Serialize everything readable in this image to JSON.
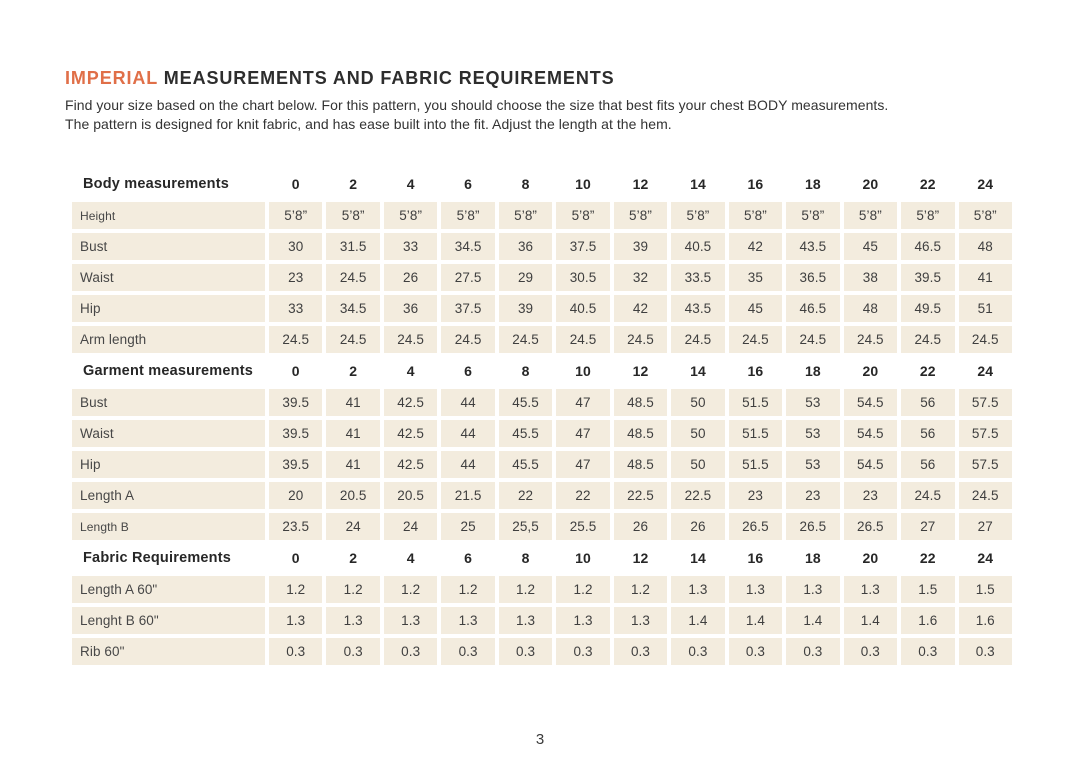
{
  "colors": {
    "accent": "#E06F48",
    "cell_background": "#F3ECDE"
  },
  "title": {
    "accent": "IMPERIAL",
    "rest": " MEASUREMENTS AND FABRIC REQUIREMENTS"
  },
  "intro": {
    "line1": "Find your size based on the chart below. For this pattern, you should choose the size that best fits your chest BODY measurements.",
    "line2": "The pattern is designed for knit fabric, and has ease built into the fit. Adjust the length at the hem."
  },
  "table": {
    "sizes": [
      "0",
      "2",
      "4",
      "6",
      "8",
      "10",
      "12",
      "14",
      "16",
      "18",
      "20",
      "22",
      "24"
    ],
    "sections": [
      {
        "label": "Body measurements",
        "rows": [
          {
            "label": "Height",
            "small": true,
            "values": [
              "5’8”",
              "5’8”",
              "5’8”",
              "5’8”",
              "5’8”",
              "5’8”",
              "5’8”",
              "5’8”",
              "5’8”",
              "5’8”",
              "5’8”",
              "5’8”",
              "5’8”"
            ]
          },
          {
            "label": "Bust",
            "small": false,
            "values": [
              "30",
              "31.5",
              "33",
              "34.5",
              "36",
              "37.5",
              "39",
              "40.5",
              "42",
              "43.5",
              "45",
              "46.5",
              "48"
            ]
          },
          {
            "label": "Waist",
            "small": false,
            "values": [
              "23",
              "24.5",
              "26",
              "27.5",
              "29",
              "30.5",
              "32",
              "33.5",
              "35",
              "36.5",
              "38",
              "39.5",
              "41"
            ]
          },
          {
            "label": "Hip",
            "small": false,
            "values": [
              "33",
              "34.5",
              "36",
              "37.5",
              "39",
              "40.5",
              "42",
              "43.5",
              "45",
              "46.5",
              "48",
              "49.5",
              "51"
            ]
          },
          {
            "label": "Arm length",
            "small": false,
            "values": [
              "24.5",
              "24.5",
              "24.5",
              "24.5",
              "24.5",
              "24.5",
              "24.5",
              "24.5",
              "24.5",
              "24.5",
              "24.5",
              "24.5",
              "24.5"
            ]
          }
        ]
      },
      {
        "label": "Garment measurements",
        "rows": [
          {
            "label": "Bust",
            "small": false,
            "values": [
              "39.5",
              "41",
              "42.5",
              "44",
              "45.5",
              "47",
              "48.5",
              "50",
              "51.5",
              "53",
              "54.5",
              "56",
              "57.5"
            ]
          },
          {
            "label": "Waist",
            "small": false,
            "values": [
              "39.5",
              "41",
              "42.5",
              "44",
              "45.5",
              "47",
              "48.5",
              "50",
              "51.5",
              "53",
              "54.5",
              "56",
              "57.5"
            ]
          },
          {
            "label": "Hip",
            "small": false,
            "values": [
              "39.5",
              "41",
              "42.5",
              "44",
              "45.5",
              "47",
              "48.5",
              "50",
              "51.5",
              "53",
              "54.5",
              "56",
              "57.5"
            ]
          },
          {
            "label": "Length A",
            "small": false,
            "values": [
              "20",
              "20.5",
              "20.5",
              "21.5",
              "22",
              "22",
              "22.5",
              "22.5",
              "23",
              "23",
              "23",
              "24.5",
              "24.5"
            ]
          },
          {
            "label": "Length B",
            "small": true,
            "values": [
              "23.5",
              "24",
              "24",
              "25",
              "25,5",
              "25.5",
              "26",
              "26",
              "26.5",
              "26.5",
              "26.5",
              "27",
              "27"
            ]
          }
        ]
      },
      {
        "label": "Fabric Requirements",
        "rows": [
          {
            "label": "Length A 60\"",
            "small": false,
            "values": [
              "1.2",
              "1.2",
              "1.2",
              "1.2",
              "1.2",
              "1.2",
              "1.2",
              "1.3",
              "1.3",
              "1.3",
              "1.3",
              "1.5",
              "1.5"
            ]
          },
          {
            "label": "Lenght B 60\"",
            "small": false,
            "values": [
              "1.3",
              "1.3",
              "1.3",
              "1.3",
              "1.3",
              "1.3",
              "1.3",
              "1.4",
              "1.4",
              "1.4",
              "1.4",
              "1.6",
              "1.6"
            ]
          },
          {
            "label": "Rib 60\"",
            "small": false,
            "values": [
              "0.3",
              "0.3",
              "0.3",
              "0.3",
              "0.3",
              "0.3",
              "0.3",
              "0.3",
              "0.3",
              "0.3",
              "0.3",
              "0.3",
              "0.3"
            ]
          }
        ]
      }
    ]
  },
  "page_number": "3"
}
